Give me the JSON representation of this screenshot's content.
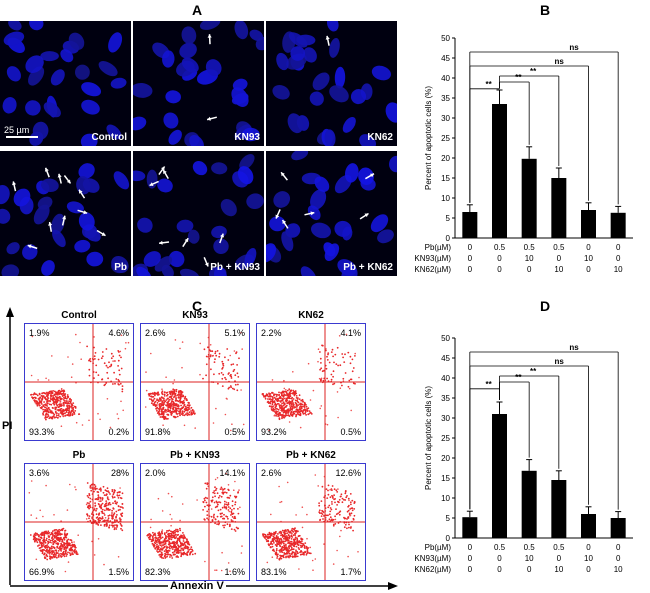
{
  "panels": {
    "A": "A",
    "B": "B",
    "C": "C",
    "D": "D"
  },
  "micrographs": [
    {
      "label": "Control",
      "scale": "25 µm"
    },
    {
      "label": "KN93"
    },
    {
      "label": "KN62"
    },
    {
      "label": "Pb"
    },
    {
      "label": "Pb + KN93"
    },
    {
      "label": "Pb + KN62"
    }
  ],
  "flow": {
    "x_axis_label": "Annexin V",
    "y_axis_label": "PI",
    "plots": [
      {
        "title": "Control",
        "ul": "1.9%",
        "ur": "4.6%",
        "ll": "93.3%",
        "lr": "0.2%"
      },
      {
        "title": "KN93",
        "ul": "2.6%",
        "ur": "5.1%",
        "ll": "91.8%",
        "lr": "0.5%"
      },
      {
        "title": "KN62",
        "ul": "2.2%",
        "ur": "4.1%",
        "ll": "93.2%",
        "lr": "0.5%"
      },
      {
        "title": "Pb",
        "ul": "3.6%",
        "ur": "28%",
        "ll": "66.9%",
        "lr": "1.5%"
      },
      {
        "title": "Pb + KN93",
        "ul": "2.0%",
        "ur": "14.1%",
        "ll": "82.3%",
        "lr": "1.6%"
      },
      {
        "title": "Pb + KN62",
        "ul": "2.6%",
        "ur": "12.6%",
        "ll": "83.1%",
        "lr": "1.7%"
      }
    ]
  },
  "chart_data": [
    {
      "type": "bar",
      "panel": "B",
      "ylabel": "Percent of apoptotic cells (%)",
      "ylim": [
        0,
        50
      ],
      "yticks": [
        0,
        5,
        10,
        15,
        20,
        25,
        30,
        35,
        40,
        45,
        50
      ],
      "values": [
        6.5,
        33.5,
        19.8,
        15.0,
        7.0,
        6.3
      ],
      "errors": [
        1.8,
        3.5,
        3.0,
        2.5,
        1.8,
        1.6
      ],
      "condition_rows": [
        {
          "name": "Pb(µM)",
          "values": [
            "0",
            "0.5",
            "0.5",
            "0.5",
            "0",
            "0"
          ]
        },
        {
          "name": "KN93(µM)",
          "values": [
            "0",
            "0",
            "10",
            "0",
            "10",
            "0"
          ]
        },
        {
          "name": "KN62(µM)",
          "values": [
            "0",
            "0",
            "0",
            "10",
            "0",
            "10"
          ]
        }
      ],
      "significance": [
        {
          "from": 0,
          "to": 1,
          "label": "**"
        },
        {
          "from": 1,
          "to": 2,
          "label": "**"
        },
        {
          "from": 1,
          "to": 3,
          "label": "**"
        },
        {
          "from": 0,
          "to": 4,
          "label": "ns"
        },
        {
          "from": 0,
          "to": 5,
          "label": "ns"
        }
      ]
    },
    {
      "type": "bar",
      "panel": "D",
      "ylabel": "Percent of apoptotic cells (%)",
      "ylim": [
        0,
        50
      ],
      "yticks": [
        0,
        5,
        10,
        15,
        20,
        25,
        30,
        35,
        40,
        45,
        50
      ],
      "values": [
        5.2,
        31.0,
        16.8,
        14.5,
        6.0,
        5.0
      ],
      "errors": [
        1.5,
        3.0,
        2.8,
        2.3,
        1.8,
        1.6
      ],
      "condition_rows": [
        {
          "name": "Pb(µM)",
          "values": [
            "0",
            "0.5",
            "0.5",
            "0.5",
            "0",
            "0"
          ]
        },
        {
          "name": "KN93(µM)",
          "values": [
            "0",
            "0",
            "10",
            "0",
            "10",
            "0"
          ]
        },
        {
          "name": "KN62(µM)",
          "values": [
            "0",
            "0",
            "0",
            "10",
            "0",
            "10"
          ]
        }
      ],
      "significance": [
        {
          "from": 0,
          "to": 1,
          "label": "**"
        },
        {
          "from": 1,
          "to": 2,
          "label": "**"
        },
        {
          "from": 1,
          "to": 3,
          "label": "**"
        },
        {
          "from": 0,
          "to": 4,
          "label": "ns"
        },
        {
          "from": 0,
          "to": 5,
          "label": "ns"
        }
      ]
    }
  ]
}
